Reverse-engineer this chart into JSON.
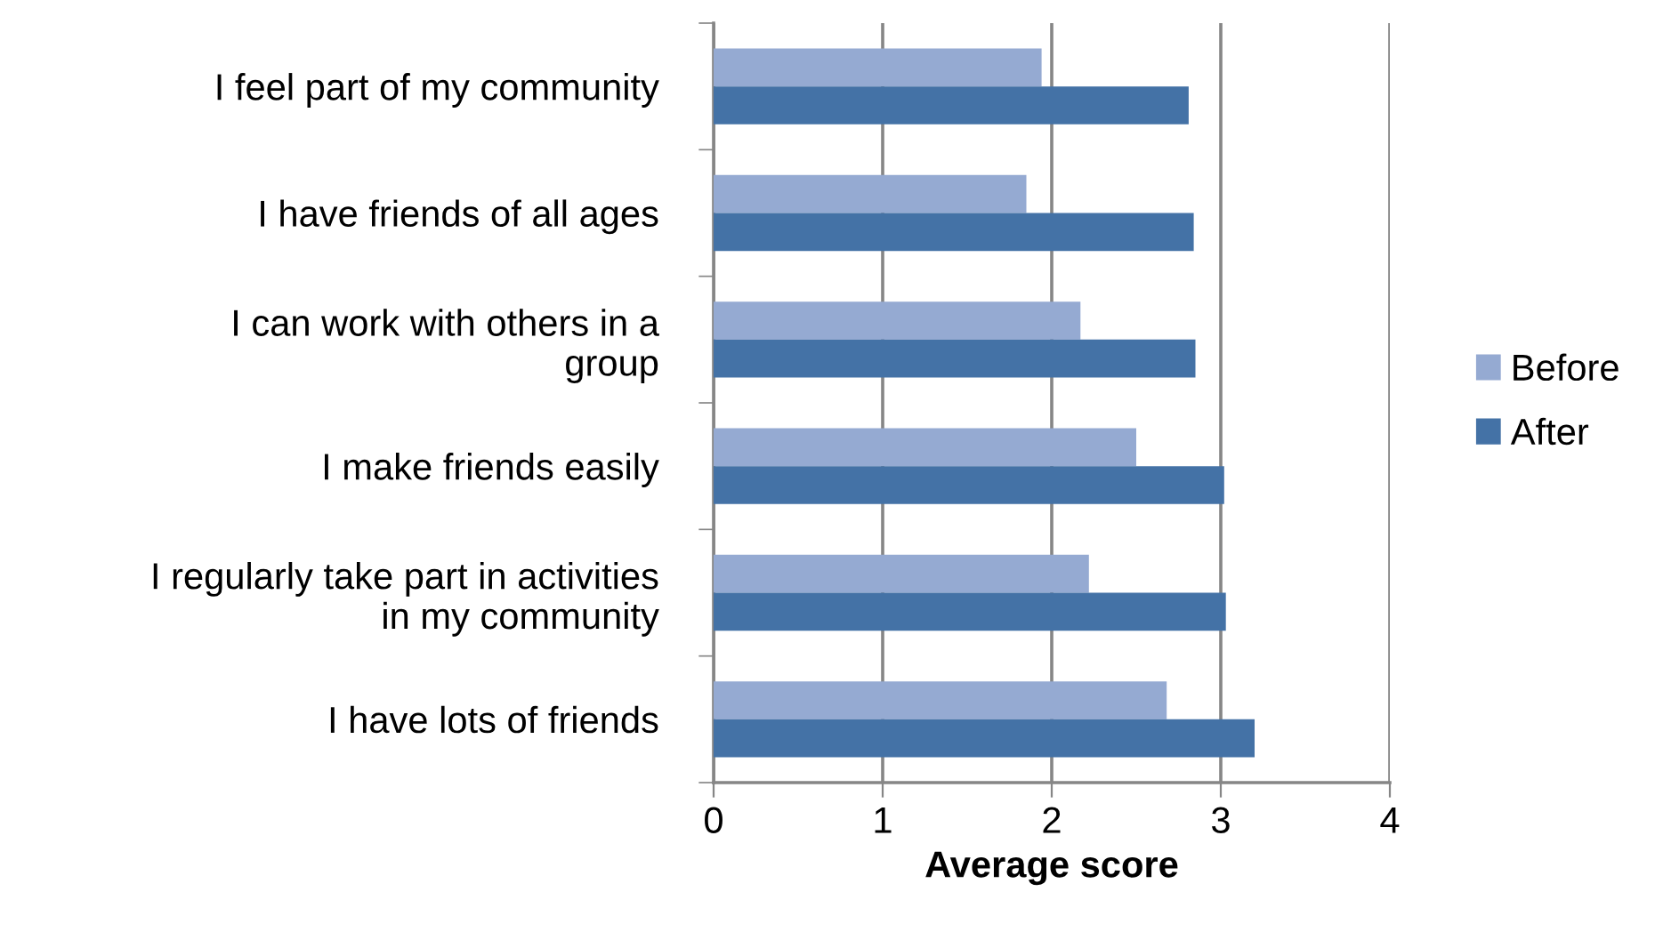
{
  "chart_data": {
    "type": "bar",
    "orientation": "horizontal",
    "xlabel": "Average score",
    "categories": [
      "I feel part of my community",
      "I have friends of all ages",
      "I can work with others in a\ngroup",
      "I make friends easily",
      "I regularly take part in activities\nin my community",
      "I have lots of friends"
    ],
    "series": [
      {
        "name": "Before",
        "color": "#95aad2",
        "values": [
          1.94,
          1.85,
          2.17,
          2.5,
          2.22,
          2.68
        ]
      },
      {
        "name": "After",
        "color": "#4472a6",
        "values": [
          2.81,
          2.84,
          2.85,
          3.02,
          3.03,
          3.2
        ]
      }
    ],
    "xlim": [
      0,
      4
    ],
    "xticks": [
      0,
      1,
      2,
      3,
      4
    ],
    "grid": "x",
    "legend": "right"
  }
}
